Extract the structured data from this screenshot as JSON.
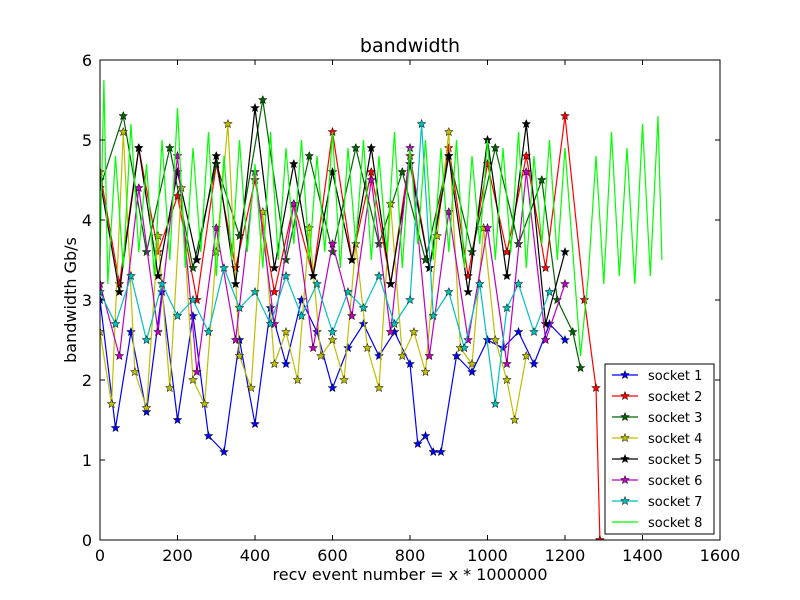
{
  "chart_data": {
    "type": "line",
    "title": "bandwidth",
    "xlabel": "recv event number = x * 1000000",
    "ylabel": "bandwidth Gb/s",
    "xlim": [
      0,
      1600
    ],
    "ylim": [
      0,
      6
    ],
    "xticks": [
      "0",
      "200",
      "400",
      "600",
      "800",
      "1000",
      "1200",
      "1400",
      "1600"
    ],
    "yticks": [
      "0",
      "1",
      "2",
      "3",
      "4",
      "5",
      "6"
    ],
    "grid": false,
    "legend_position": "lower-right",
    "series": [
      {
        "name": "socket 1",
        "color": "#0000ff",
        "marker": "star",
        "x": [
          0,
          40,
          80,
          120,
          160,
          200,
          240,
          280,
          320,
          360,
          400,
          440,
          480,
          520,
          560,
          600,
          640,
          680,
          720,
          760,
          800,
          820,
          840,
          860,
          880,
          920,
          960,
          1000,
          1040,
          1080,
          1120,
          1160,
          1200
        ],
        "y": [
          3.0,
          1.4,
          2.6,
          1.6,
          3.1,
          1.5,
          2.8,
          1.3,
          1.1,
          2.5,
          1.45,
          2.9,
          2.2,
          3.0,
          2.6,
          1.9,
          2.4,
          2.7,
          2.3,
          2.6,
          2.2,
          1.2,
          1.3,
          1.1,
          1.1,
          2.3,
          2.1,
          2.5,
          2.4,
          2.6,
          2.2,
          2.7,
          2.5
        ]
      },
      {
        "name": "socket 2",
        "color": "#ff0000",
        "marker": "star",
        "x": [
          0,
          50,
          100,
          150,
          200,
          250,
          300,
          350,
          400,
          450,
          500,
          550,
          600,
          650,
          700,
          750,
          800,
          850,
          900,
          950,
          1000,
          1050,
          1100,
          1150,
          1200,
          1250,
          1280,
          1290
        ],
        "y": [
          4.6,
          3.2,
          4.9,
          3.6,
          4.3,
          3.0,
          4.7,
          3.4,
          4.5,
          3.1,
          4.2,
          3.3,
          5.1,
          3.5,
          4.6,
          3.2,
          4.8,
          3.4,
          4.9,
          3.3,
          4.7,
          3.6,
          4.8,
          3.4,
          5.3,
          3.0,
          1.9,
          0.0
        ]
      },
      {
        "name": "socket 3",
        "color": "#006400",
        "marker": "star",
        "x": [
          0,
          60,
          120,
          180,
          240,
          300,
          360,
          420,
          480,
          540,
          600,
          660,
          720,
          780,
          840,
          900,
          960,
          1020,
          1080,
          1140,
          1180,
          1220,
          1240
        ],
        "y": [
          4.4,
          5.3,
          3.6,
          4.9,
          3.4,
          4.7,
          3.8,
          5.5,
          3.5,
          4.8,
          3.6,
          4.9,
          3.7,
          4.6,
          3.5,
          4.8,
          3.6,
          4.9,
          3.7,
          4.5,
          3.0,
          2.6,
          2.15
        ]
      },
      {
        "name": "socket 4",
        "color": "#bfbf00",
        "marker": "star",
        "x": [
          0,
          30,
          60,
          90,
          120,
          150,
          180,
          210,
          240,
          270,
          300,
          330,
          360,
          390,
          420,
          450,
          480,
          510,
          540,
          570,
          600,
          630,
          660,
          690,
          720,
          750,
          780,
          810,
          840,
          870,
          900,
          930,
          960,
          990,
          1020,
          1050,
          1070,
          1100
        ],
        "y": [
          2.6,
          1.7,
          5.1,
          2.1,
          1.65,
          3.8,
          1.9,
          4.4,
          2.0,
          1.7,
          3.6,
          5.2,
          2.3,
          1.9,
          4.1,
          2.2,
          2.6,
          2.0,
          3.9,
          2.3,
          2.5,
          2.0,
          3.7,
          2.4,
          1.9,
          4.2,
          2.3,
          2.6,
          2.1,
          3.8,
          5.1,
          2.4,
          2.2,
          3.9,
          2.5,
          2.0,
          1.5,
          2.3
        ]
      },
      {
        "name": "socket 5",
        "color": "#000000",
        "marker": "star",
        "x": [
          0,
          50,
          100,
          150,
          200,
          250,
          300,
          350,
          400,
          450,
          500,
          550,
          600,
          650,
          700,
          750,
          800,
          850,
          900,
          950,
          1000,
          1050,
          1100,
          1150,
          1200
        ],
        "y": [
          4.5,
          3.1,
          4.9,
          3.3,
          4.6,
          3.5,
          4.8,
          3.2,
          5.4,
          3.4,
          4.7,
          3.3,
          4.6,
          3.5,
          4.9,
          3.2,
          4.7,
          3.4,
          4.8,
          3.1,
          5.0,
          3.3,
          5.2,
          2.7,
          3.6
        ]
      },
      {
        "name": "socket 6",
        "color": "#bf00bf",
        "marker": "star",
        "x": [
          0,
          50,
          100,
          150,
          200,
          250,
          300,
          350,
          400,
          450,
          500,
          550,
          600,
          650,
          700,
          750,
          800,
          850,
          900,
          950,
          1000,
          1050,
          1100,
          1150,
          1200
        ],
        "y": [
          3.2,
          2.3,
          4.4,
          2.6,
          4.8,
          2.1,
          3.9,
          2.5,
          4.6,
          2.7,
          4.2,
          2.4,
          3.7,
          2.8,
          4.5,
          2.6,
          4.9,
          2.3,
          4.1,
          2.5,
          3.9,
          2.2,
          4.6,
          2.5,
          3.2
        ]
      },
      {
        "name": "socket 7",
        "color": "#00bfbf",
        "marker": "star",
        "x": [
          0,
          40,
          80,
          120,
          160,
          200,
          240,
          280,
          320,
          360,
          400,
          440,
          480,
          520,
          560,
          600,
          640,
          680,
          720,
          760,
          800,
          830,
          860,
          900,
          940,
          980,
          1020,
          1050,
          1080,
          1120,
          1160
        ],
        "y": [
          3.1,
          2.7,
          3.3,
          2.5,
          3.2,
          2.8,
          3.0,
          2.6,
          3.4,
          2.9,
          3.1,
          2.7,
          3.3,
          2.8,
          3.2,
          2.6,
          3.1,
          2.9,
          3.3,
          2.7,
          3.0,
          5.2,
          2.8,
          3.1,
          2.4,
          3.2,
          1.7,
          2.9,
          3.2,
          2.6,
          3.1
        ]
      },
      {
        "name": "socket 8",
        "color": "#00ff00",
        "marker": "none",
        "x": [
          0,
          10,
          20,
          40,
          60,
          80,
          100,
          120,
          140,
          160,
          180,
          200,
          220,
          240,
          260,
          280,
          300,
          320,
          340,
          360,
          380,
          400,
          420,
          440,
          460,
          480,
          500,
          520,
          540,
          560,
          580,
          600,
          620,
          640,
          660,
          680,
          700,
          720,
          740,
          760,
          780,
          800,
          820,
          840,
          860,
          880,
          900,
          920,
          940,
          960,
          980,
          1000,
          1020,
          1040,
          1060,
          1080,
          1100,
          1120,
          1140,
          1160,
          1180,
          1200,
          1220,
          1240,
          1260,
          1280,
          1300,
          1320,
          1340,
          1360,
          1380,
          1400,
          1420,
          1440,
          1450
        ],
        "y": [
          3.5,
          5.75,
          3.2,
          4.8,
          3.4,
          5.2,
          3.6,
          4.7,
          3.3,
          5.0,
          3.5,
          5.4,
          3.4,
          4.9,
          3.6,
          5.1,
          3.3,
          4.8,
          3.5,
          5.0,
          3.6,
          4.7,
          3.4,
          5.1,
          3.5,
          4.9,
          3.7,
          5.0,
          3.5,
          4.8,
          3.6,
          5.1,
          3.4,
          4.9,
          3.7,
          5.0,
          3.5,
          4.8,
          3.6,
          5.1,
          3.4,
          4.9,
          3.7,
          5.0,
          3.5,
          4.9,
          3.6,
          5.0,
          3.4,
          4.8,
          3.7,
          5.0,
          3.5,
          4.9,
          3.6,
          5.1,
          3.4,
          4.8,
          3.7,
          5.0,
          3.5,
          4.9,
          3.6,
          2.3,
          3.3,
          4.8,
          3.2,
          5.1,
          3.3,
          4.9,
          3.2,
          5.2,
          3.3,
          5.3,
          3.5
        ]
      }
    ]
  }
}
